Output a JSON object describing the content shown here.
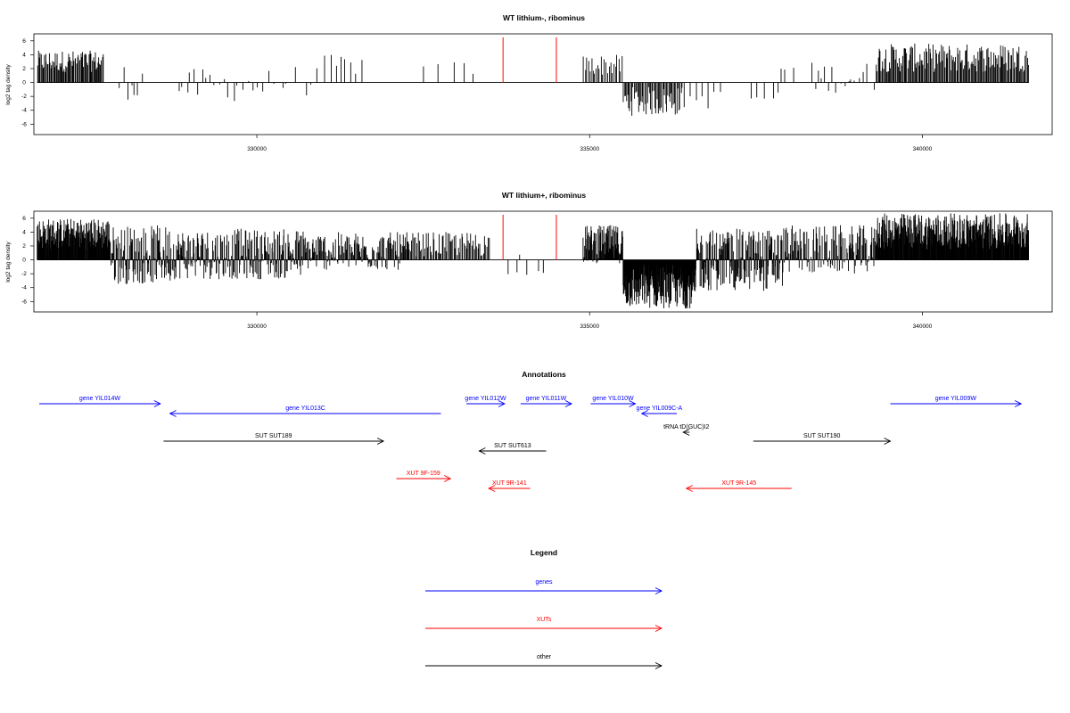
{
  "colors": {
    "genes": "#0000ff",
    "xuts": "#ff0000",
    "other": "#000000",
    "marker": "#ff4040"
  },
  "chart_data": [
    {
      "type": "bar",
      "title": "WT lithium-, ribominus",
      "ylabel": "log2 tag density",
      "xlim": [
        326650,
        341950
      ],
      "ylim": [
        -7.5,
        7
      ],
      "yticks": [
        "6",
        "4",
        "2",
        "0",
        "-2",
        "-4",
        "-6"
      ],
      "xticks": [
        "330000",
        "335000",
        "340000"
      ],
      "marker_positions": [
        333700,
        334500
      ],
      "marker_height": 6.5,
      "segments": [
        {
          "x0": 326700,
          "x1": 327700,
          "count": 75,
          "min": 1.5,
          "max": 4.6
        },
        {
          "x0": 327900,
          "x1": 328300,
          "count": 8,
          "min": -2.5,
          "max": 2.8
        },
        {
          "x0": 328800,
          "x1": 329400,
          "count": 10,
          "min": -3.0,
          "max": 2.0
        },
        {
          "x0": 329400,
          "x1": 330200,
          "count": 11,
          "min": -2.8,
          "max": 2.0
        },
        {
          "x0": 330200,
          "x1": 331000,
          "count": 7,
          "min": -2.0,
          "max": 2.5
        },
        {
          "x0": 331000,
          "x1": 331600,
          "count": 8,
          "min": 1.0,
          "max": 4.0
        },
        {
          "x0": 332500,
          "x1": 333400,
          "count": 5,
          "min": 1.0,
          "max": 3.0
        },
        {
          "x0": 334900,
          "x1": 335500,
          "count": 25,
          "min": 1.0,
          "max": 4.0
        },
        {
          "x0": 335500,
          "x1": 336400,
          "count": 55,
          "min": -4.8,
          "max": -0.6
        },
        {
          "x0": 336400,
          "x1": 337000,
          "count": 7,
          "min": -3.8,
          "max": -1.0
        },
        {
          "x0": 337400,
          "x1": 337900,
          "count": 5,
          "min": -3.5,
          "max": -1.0
        },
        {
          "x0": 337800,
          "x1": 338100,
          "count": 3,
          "min": 1.0,
          "max": 3.0
        },
        {
          "x0": 338300,
          "x1": 339300,
          "count": 18,
          "min": -1.5,
          "max": 3.0
        },
        {
          "x0": 339300,
          "x1": 341600,
          "count": 160,
          "min": 1.5,
          "max": 5.6
        }
      ]
    },
    {
      "type": "bar",
      "title": "WT lithium+, ribominus",
      "ylabel": "log2 tag density",
      "xlim": [
        326650,
        341950
      ],
      "ylim": [
        -7.5,
        7
      ],
      "yticks": [
        "6",
        "4",
        "2",
        "0",
        "-2",
        "-4",
        "-6"
      ],
      "xticks": [
        "330000",
        "335000",
        "340000"
      ],
      "marker_positions": [
        333700,
        334500
      ],
      "marker_height": 6.5,
      "segments": [
        {
          "x0": 326700,
          "x1": 327800,
          "count": 170,
          "min": 1.5,
          "max": 6.0
        },
        {
          "x0": 327800,
          "x1": 328700,
          "count": 110,
          "min": -3.5,
          "max": 5.0
        },
        {
          "x0": 328700,
          "x1": 330700,
          "count": 230,
          "min": -2.8,
          "max": 4.5
        },
        {
          "x0": 330700,
          "x1": 332300,
          "count": 150,
          "min": -1.5,
          "max": 4.0
        },
        {
          "x0": 332300,
          "x1": 333500,
          "count": 70,
          "min": 0.5,
          "max": 4.0
        },
        {
          "x0": 333700,
          "x1": 334400,
          "count": 6,
          "min": -2.2,
          "max": 1.5
        },
        {
          "x0": 334900,
          "x1": 335500,
          "count": 90,
          "min": -0.5,
          "max": 5.0
        },
        {
          "x0": 335500,
          "x1": 336600,
          "count": 230,
          "min": -7.0,
          "max": -0.5
        },
        {
          "x0": 336600,
          "x1": 337900,
          "count": 180,
          "min": -4.5,
          "max": 4.5
        },
        {
          "x0": 337900,
          "x1": 339300,
          "count": 130,
          "min": -2.0,
          "max": 5.0
        },
        {
          "x0": 339300,
          "x1": 341600,
          "count": 360,
          "min": 1.5,
          "max": 6.7
        }
      ]
    }
  ],
  "annotations": {
    "title": "Annotations",
    "xlim": [
      326650,
      341950
    ],
    "items": [
      {
        "label": "gene YIL014W",
        "x0": 326650,
        "x1": 328550,
        "dir": "right",
        "row": 0,
        "kind": "genes"
      },
      {
        "label": "gene YIL013C",
        "x0": 328700,
        "x1": 332950,
        "dir": "left",
        "row": 1,
        "kind": "genes"
      },
      {
        "label": "gene YIL012W",
        "x0": 333350,
        "x1": 333950,
        "dir": "right",
        "row": 0,
        "kind": "genes"
      },
      {
        "label": "gene YIL011W",
        "x0": 334200,
        "x1": 335000,
        "dir": "right",
        "row": 0,
        "kind": "genes"
      },
      {
        "label": "gene YIL010W",
        "x0": 335300,
        "x1": 336000,
        "dir": "right",
        "row": 0,
        "kind": "genes"
      },
      {
        "label": "gene YIL009C-A",
        "x0": 336100,
        "x1": 336650,
        "dir": "left",
        "row": 1,
        "kind": "genes"
      },
      {
        "label": "gene YIL009W",
        "x0": 340000,
        "x1": 342050,
        "dir": "right",
        "row": 0,
        "kind": "genes"
      },
      {
        "label": "tRNA tD(GUC)I2",
        "x0": 336750,
        "x1": 336850,
        "dir": "left",
        "row": 2,
        "kind": "other"
      },
      {
        "label": "SUT SUT189",
        "x0": 328600,
        "x1": 332050,
        "dir": "right",
        "row": 3,
        "kind": "other"
      },
      {
        "label": "SUT SUT613",
        "x0": 333550,
        "x1": 334600,
        "dir": "left",
        "row": 4,
        "kind": "other"
      },
      {
        "label": "SUT SUT190",
        "x0": 337850,
        "x1": 340000,
        "dir": "right",
        "row": 3,
        "kind": "other"
      },
      {
        "label": "XUT 9F-159",
        "x0": 332250,
        "x1": 333100,
        "dir": "right",
        "row": 5,
        "kind": "xuts"
      },
      {
        "label": "XUT 9R-141",
        "x0": 333700,
        "x1": 334350,
        "dir": "left",
        "row": 6,
        "kind": "xuts"
      },
      {
        "label": "XUT 9R-145",
        "x0": 336800,
        "x1": 338450,
        "dir": "left",
        "row": 6,
        "kind": "xuts"
      }
    ]
  },
  "legend": {
    "title": "Legend",
    "items": [
      {
        "label": "genes",
        "kind": "genes"
      },
      {
        "label": "XUTs",
        "kind": "xuts"
      },
      {
        "label": "other",
        "kind": "other"
      }
    ]
  }
}
